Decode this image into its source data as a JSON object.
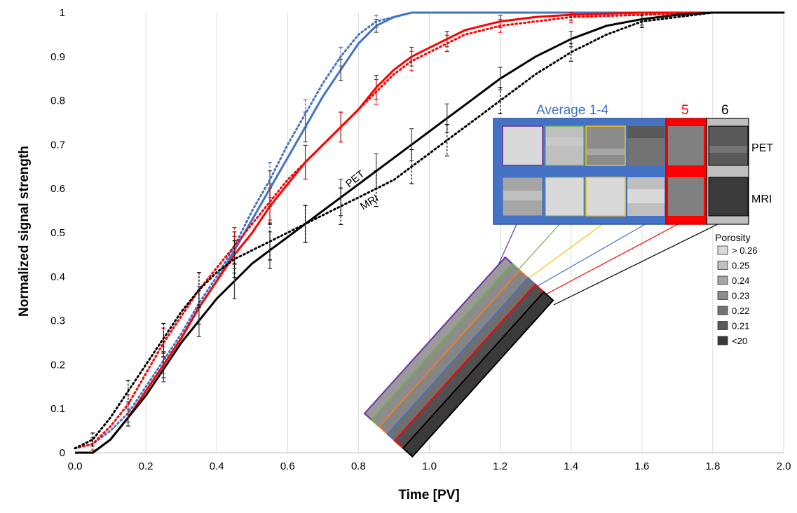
{
  "chart_data": {
    "type": "line",
    "xlabel": "Time [PV]",
    "ylabel": "Normalized signal strength",
    "xlim": [
      0,
      2
    ],
    "ylim": [
      0,
      1
    ],
    "grid": "vertical",
    "x_ticks": [
      "0.0",
      "0.2",
      "0.4",
      "0.6",
      "0.8",
      "1.0",
      "1.2",
      "1.4",
      "1.6",
      "1.8",
      "2.0"
    ],
    "y_ticks": [
      "0",
      "0.1",
      "0.2",
      "0.3",
      "0.4",
      "0.5",
      "0.6",
      "0.7",
      "0.8",
      "0.9",
      "1"
    ],
    "series": [
      {
        "color": "#4472C4",
        "style": "solid",
        "x": [
          0,
          0.05,
          0.1,
          0.15,
          0.2,
          0.25,
          0.3,
          0.35,
          0.4,
          0.45,
          0.5,
          0.55,
          0.6,
          0.65,
          0.7,
          0.75,
          0.8,
          0.85,
          0.9,
          0.95,
          1.0,
          1.2,
          1.6,
          2.0
        ],
        "y": [
          0,
          0,
          0.03,
          0.08,
          0.14,
          0.2,
          0.26,
          0.33,
          0.39,
          0.46,
          0.53,
          0.6,
          0.67,
          0.74,
          0.81,
          0.87,
          0.93,
          0.97,
          0.99,
          1.0,
          1.0,
          1.0,
          1.0,
          1.0
        ]
      },
      {
        "color": "#4472C4",
        "style": "dotted",
        "x": [
          0,
          0.05,
          0.1,
          0.15,
          0.2,
          0.25,
          0.3,
          0.35,
          0.4,
          0.45,
          0.5,
          0.55,
          0.6,
          0.65,
          0.7,
          0.75,
          0.8,
          0.85,
          0.9,
          0.95,
          1.0,
          1.2,
          1.6,
          2.0
        ],
        "y": [
          0.01,
          0.02,
          0.05,
          0.09,
          0.15,
          0.21,
          0.27,
          0.34,
          0.4,
          0.47,
          0.55,
          0.62,
          0.7,
          0.77,
          0.84,
          0.9,
          0.95,
          0.98,
          0.99,
          1.0,
          1.0,
          1.0,
          1.0,
          1.0
        ]
      },
      {
        "color": "#FF0000",
        "style": "solid",
        "x": [
          0,
          0.05,
          0.1,
          0.15,
          0.2,
          0.25,
          0.3,
          0.35,
          0.4,
          0.45,
          0.5,
          0.55,
          0.6,
          0.65,
          0.7,
          0.75,
          0.8,
          0.85,
          0.9,
          0.95,
          1.0,
          1.05,
          1.1,
          1.2,
          1.3,
          1.4,
          1.6,
          1.8,
          2.0
        ],
        "y": [
          0,
          0,
          0.03,
          0.08,
          0.14,
          0.2,
          0.26,
          0.33,
          0.39,
          0.45,
          0.5,
          0.56,
          0.61,
          0.66,
          0.7,
          0.74,
          0.78,
          0.83,
          0.87,
          0.9,
          0.92,
          0.94,
          0.96,
          0.98,
          0.99,
          0.995,
          1.0,
          1.0,
          1.0
        ]
      },
      {
        "color": "#FF0000",
        "style": "dotted",
        "x": [
          0,
          0.05,
          0.1,
          0.15,
          0.2,
          0.25,
          0.3,
          0.35,
          0.4,
          0.45,
          0.5,
          0.55,
          0.6,
          0.65,
          0.7,
          0.75,
          0.8,
          0.85,
          0.9,
          0.95,
          1.0,
          1.05,
          1.1,
          1.2,
          1.3,
          1.4,
          1.6,
          1.8,
          2.0
        ],
        "y": [
          0.01,
          0.02,
          0.06,
          0.11,
          0.18,
          0.25,
          0.31,
          0.37,
          0.42,
          0.47,
          0.52,
          0.57,
          0.62,
          0.66,
          0.7,
          0.74,
          0.78,
          0.82,
          0.86,
          0.89,
          0.91,
          0.93,
          0.95,
          0.97,
          0.98,
          0.99,
          0.995,
          1.0,
          1.0
        ]
      },
      {
        "color": "#000000",
        "style": "solid",
        "x": [
          0,
          0.05,
          0.1,
          0.15,
          0.2,
          0.25,
          0.3,
          0.35,
          0.4,
          0.45,
          0.5,
          0.55,
          0.6,
          0.65,
          0.7,
          0.75,
          0.8,
          0.85,
          0.9,
          0.95,
          1.0,
          1.05,
          1.1,
          1.2,
          1.3,
          1.4,
          1.5,
          1.6,
          1.7,
          1.8,
          1.9,
          2.0
        ],
        "y": [
          0,
          0,
          0.03,
          0.08,
          0.13,
          0.19,
          0.25,
          0.3,
          0.35,
          0.39,
          0.43,
          0.46,
          0.49,
          0.52,
          0.55,
          0.58,
          0.61,
          0.64,
          0.67,
          0.7,
          0.73,
          0.76,
          0.79,
          0.85,
          0.9,
          0.94,
          0.97,
          0.985,
          0.995,
          1.0,
          1.0,
          1.0
        ]
      },
      {
        "color": "#000000",
        "style": "dotted",
        "x": [
          0,
          0.05,
          0.1,
          0.15,
          0.2,
          0.25,
          0.3,
          0.35,
          0.4,
          0.45,
          0.5,
          0.55,
          0.6,
          0.65,
          0.7,
          0.75,
          0.8,
          0.85,
          0.9,
          0.95,
          1.0,
          1.05,
          1.1,
          1.2,
          1.3,
          1.4,
          1.5,
          1.6,
          1.7,
          1.8,
          1.9,
          2.0
        ],
        "y": [
          0.01,
          0.03,
          0.08,
          0.14,
          0.2,
          0.26,
          0.32,
          0.37,
          0.41,
          0.44,
          0.46,
          0.48,
          0.5,
          0.52,
          0.54,
          0.56,
          0.58,
          0.6,
          0.62,
          0.65,
          0.68,
          0.71,
          0.74,
          0.8,
          0.86,
          0.91,
          0.95,
          0.98,
          0.99,
          1.0,
          1.0,
          1.0
        ]
      }
    ],
    "annotations": [
      "PET",
      "MRI"
    ],
    "inset": {
      "titles": [
        {
          "text": "Average 1-4",
          "color": "#4472C4"
        },
        {
          "text": "5",
          "color": "#FF0000"
        },
        {
          "text": "6",
          "color": "#000000"
        }
      ],
      "row_labels": [
        "PET",
        "MRI"
      ],
      "legend_title": "Porosity",
      "legend": [
        {
          "label": "> 0.26",
          "color": "#d9d9d9"
        },
        {
          "label": "0.25",
          "color": "#bfbfbf"
        },
        {
          "label": "0.24",
          "color": "#a6a6a6"
        },
        {
          "label": "0.23",
          "color": "#8c8c8c"
        },
        {
          "label": "0.22",
          "color": "#737373"
        },
        {
          "label": "0.21",
          "color": "#595959"
        },
        {
          "label": "<20",
          "color": "#3a3a3a"
        }
      ]
    }
  }
}
